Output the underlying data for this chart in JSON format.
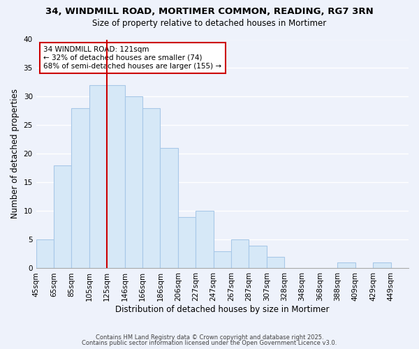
{
  "title": "34, WINDMILL ROAD, MORTIMER COMMON, READING, RG7 3RN",
  "subtitle": "Size of property relative to detached houses in Mortimer",
  "xlabel": "Distribution of detached houses by size in Mortimer",
  "ylabel": "Number of detached properties",
  "bar_color": "#d6e8f7",
  "bar_edge_color": "#a8c8e8",
  "background_color": "#eef2fb",
  "grid_color": "#ffffff",
  "bins": [
    "45sqm",
    "65sqm",
    "85sqm",
    "105sqm",
    "125sqm",
    "146sqm",
    "166sqm",
    "186sqm",
    "206sqm",
    "227sqm",
    "247sqm",
    "267sqm",
    "287sqm",
    "307sqm",
    "328sqm",
    "348sqm",
    "368sqm",
    "388sqm",
    "409sqm",
    "429sqm",
    "449sqm"
  ],
  "counts": [
    5,
    18,
    28,
    32,
    32,
    30,
    28,
    21,
    9,
    10,
    3,
    5,
    4,
    2,
    0,
    0,
    0,
    1,
    0,
    1,
    0
  ],
  "bin_width": 1,
  "num_bins": 21,
  "property_line_bin": 4,
  "annotation_title": "34 WINDMILL ROAD: 121sqm",
  "annotation_line1": "← 32% of detached houses are smaller (74)",
  "annotation_line2": "68% of semi-detached houses are larger (155) →",
  "ylim": [
    0,
    40
  ],
  "yticks": [
    0,
    5,
    10,
    15,
    20,
    25,
    30,
    35,
    40
  ],
  "footer1": "Contains HM Land Registry data © Crown copyright and database right 2025.",
  "footer2": "Contains public sector information licensed under the Open Government Licence v3.0.",
  "red_line_color": "#cc0000",
  "annotation_box_edge": "#cc0000",
  "title_fontsize": 9.5,
  "subtitle_fontsize": 8.5,
  "ylabel_fontsize": 8.5,
  "xlabel_fontsize": 8.5,
  "tick_fontsize": 7.5,
  "footer_fontsize": 6.0
}
